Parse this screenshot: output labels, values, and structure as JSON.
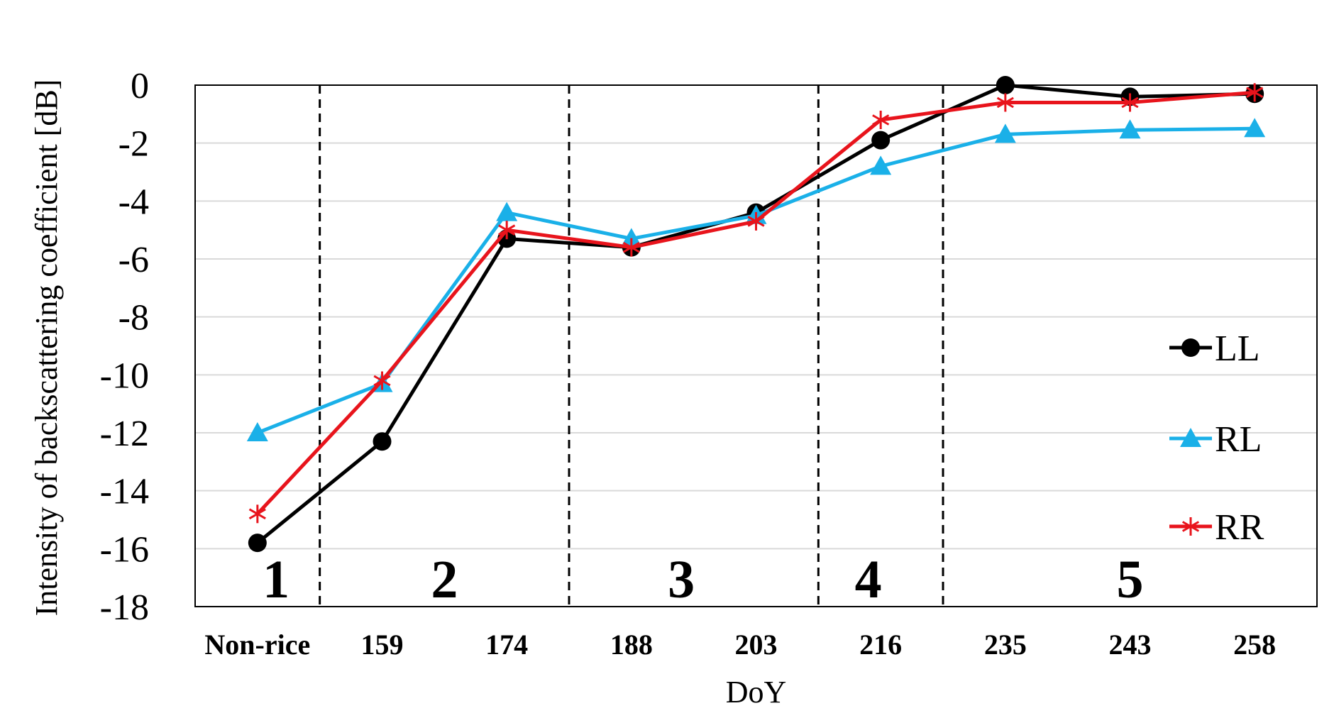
{
  "chart_data": {
    "type": "line",
    "title": "",
    "xlabel": "DoY",
    "ylabel": "Intensity of backscattering coefficient [dB]",
    "categories": [
      "Non-rice",
      "159",
      "174",
      "188",
      "203",
      "216",
      "235",
      "243",
      "258"
    ],
    "ylim": [
      -18,
      0
    ],
    "yticks": [
      0,
      -2,
      -4,
      -6,
      -8,
      -10,
      -12,
      -14,
      -16,
      -18
    ],
    "grid": true,
    "legend_position": "right",
    "series": [
      {
        "name": "LL",
        "color": "#000000",
        "marker": "circle",
        "values": [
          -15.8,
          -12.3,
          -5.3,
          -5.6,
          -4.4,
          -1.9,
          0.0,
          -0.4,
          -0.3
        ]
      },
      {
        "name": "RL",
        "color": "#1ab0e8",
        "marker": "triangle",
        "values": [
          -12.0,
          -10.3,
          -4.4,
          -5.3,
          -4.5,
          -2.8,
          -1.7,
          -1.55,
          -1.5
        ]
      },
      {
        "name": "RR",
        "color": "#e8141c",
        "marker": "star",
        "values": [
          -14.8,
          -10.2,
          -5.0,
          -5.6,
          -4.7,
          -1.2,
          -0.6,
          -0.6,
          -0.25
        ]
      }
    ],
    "stage_dividers_after_category_index": [
      0,
      2,
      4,
      5
    ],
    "stages": [
      {
        "label": "1",
        "center_index": 0.15
      },
      {
        "label": "2",
        "center_index": 1.5
      },
      {
        "label": "3",
        "center_index": 3.4
      },
      {
        "label": "4",
        "center_index": 4.9
      },
      {
        "label": "5",
        "center_index": 7.0
      }
    ]
  }
}
